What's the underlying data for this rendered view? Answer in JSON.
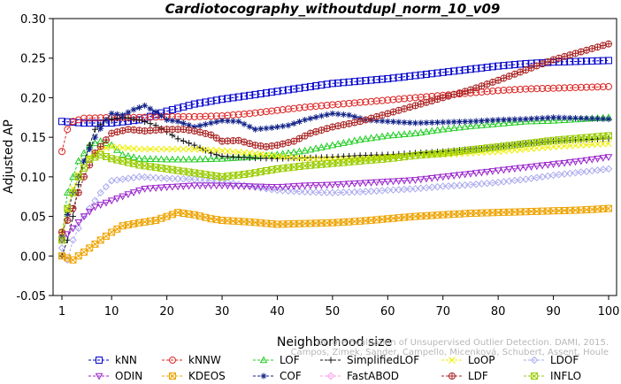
{
  "chart_data": {
    "type": "line",
    "title": "Cardiotocography_withoutdupl_norm_10_v09",
    "xlabel": "Neighborhood size",
    "ylabel": "Adjusted AP",
    "xlim": [
      1,
      100
    ],
    "ylim": [
      -0.05,
      0.3
    ],
    "xticks": [
      "1",
      "10",
      "20",
      "30",
      "40",
      "50",
      "60",
      "70",
      "80",
      "90",
      "100"
    ],
    "yticks": [
      "-0.05",
      "0.00",
      "0.05",
      "0.10",
      "0.15",
      "0.20",
      "0.25",
      "0.30"
    ],
    "credit": [
      "Campos, Zimek, Sander, Campello, Micenková, Schubert, Assent, Houle",
      "On the Evaluation of Unsupervised Outlier Detection. DAMI, 2015."
    ],
    "legend_position": "bottom",
    "series": [
      {
        "name": "kNN",
        "color": "#0000cc",
        "marker": "square",
        "points": [
          [
            1,
            0.17
          ],
          [
            5,
            0.168
          ],
          [
            10,
            0.168
          ],
          [
            15,
            0.172
          ],
          [
            20,
            0.183
          ],
          [
            25,
            0.192
          ],
          [
            30,
            0.198
          ],
          [
            35,
            0.203
          ],
          [
            40,
            0.208
          ],
          [
            45,
            0.213
          ],
          [
            50,
            0.218
          ],
          [
            55,
            0.221
          ],
          [
            60,
            0.224
          ],
          [
            65,
            0.228
          ],
          [
            70,
            0.232
          ],
          [
            75,
            0.236
          ],
          [
            80,
            0.24
          ],
          [
            85,
            0.243
          ],
          [
            90,
            0.245
          ],
          [
            95,
            0.246
          ],
          [
            100,
            0.247
          ]
        ]
      },
      {
        "name": "kNNW",
        "color": "#dd2222",
        "marker": "circle",
        "points": [
          [
            1,
            0.132
          ],
          [
            2,
            0.16
          ],
          [
            3,
            0.17
          ],
          [
            4,
            0.172
          ],
          [
            5,
            0.174
          ],
          [
            10,
            0.175
          ],
          [
            15,
            0.175
          ],
          [
            20,
            0.176
          ],
          [
            25,
            0.176
          ],
          [
            30,
            0.177
          ],
          [
            35,
            0.18
          ],
          [
            40,
            0.184
          ],
          [
            45,
            0.188
          ],
          [
            50,
            0.191
          ],
          [
            55,
            0.194
          ],
          [
            60,
            0.197
          ],
          [
            65,
            0.2
          ],
          [
            70,
            0.203
          ],
          [
            75,
            0.206
          ],
          [
            80,
            0.209
          ],
          [
            85,
            0.211
          ],
          [
            90,
            0.212
          ],
          [
            95,
            0.213
          ],
          [
            100,
            0.214
          ]
        ]
      },
      {
        "name": "LOF",
        "color": "#22cc22",
        "marker": "triangle-up",
        "points": [
          [
            1,
            0.022
          ],
          [
            2,
            0.08
          ],
          [
            3,
            0.1
          ],
          [
            4,
            0.12
          ],
          [
            5,
            0.13
          ],
          [
            6,
            0.14
          ],
          [
            8,
            0.145
          ],
          [
            10,
            0.14
          ],
          [
            12,
            0.128
          ],
          [
            15,
            0.123
          ],
          [
            20,
            0.122
          ],
          [
            25,
            0.122
          ],
          [
            30,
            0.123
          ],
          [
            35,
            0.125
          ],
          [
            40,
            0.128
          ],
          [
            45,
            0.133
          ],
          [
            50,
            0.14
          ],
          [
            55,
            0.147
          ],
          [
            60,
            0.152
          ],
          [
            65,
            0.155
          ],
          [
            70,
            0.16
          ],
          [
            75,
            0.164
          ],
          [
            80,
            0.167
          ],
          [
            85,
            0.17
          ],
          [
            90,
            0.171
          ],
          [
            95,
            0.173
          ],
          [
            100,
            0.175
          ]
        ]
      },
      {
        "name": "SimplifiedLOF",
        "color": "#111111",
        "marker": "plus",
        "points": [
          [
            1,
            0.0
          ],
          [
            2,
            0.02
          ],
          [
            3,
            0.05
          ],
          [
            4,
            0.09
          ],
          [
            5,
            0.12
          ],
          [
            7,
            0.16
          ],
          [
            9,
            0.172
          ],
          [
            12,
            0.175
          ],
          [
            15,
            0.172
          ],
          [
            18,
            0.165
          ],
          [
            20,
            0.157
          ],
          [
            22,
            0.148
          ],
          [
            25,
            0.14
          ],
          [
            28,
            0.13
          ],
          [
            30,
            0.126
          ],
          [
            35,
            0.124
          ],
          [
            40,
            0.123
          ],
          [
            45,
            0.124
          ],
          [
            50,
            0.125
          ],
          [
            55,
            0.127
          ],
          [
            60,
            0.128
          ],
          [
            65,
            0.13
          ],
          [
            70,
            0.132
          ],
          [
            75,
            0.135
          ],
          [
            80,
            0.138
          ],
          [
            85,
            0.142
          ],
          [
            90,
            0.145
          ],
          [
            95,
            0.147
          ],
          [
            100,
            0.148
          ]
        ]
      },
      {
        "name": "LoOP",
        "color": "#eeee00",
        "marker": "x",
        "points": [
          [
            1,
            0.03
          ],
          [
            3,
            0.085
          ],
          [
            5,
            0.12
          ],
          [
            8,
            0.135
          ],
          [
            10,
            0.138
          ],
          [
            15,
            0.135
          ],
          [
            20,
            0.135
          ],
          [
            25,
            0.135
          ],
          [
            30,
            0.133
          ],
          [
            35,
            0.13
          ],
          [
            40,
            0.126
          ],
          [
            45,
            0.123
          ],
          [
            50,
            0.122
          ],
          [
            55,
            0.123
          ],
          [
            60,
            0.125
          ],
          [
            65,
            0.127
          ],
          [
            70,
            0.128
          ],
          [
            75,
            0.13
          ],
          [
            80,
            0.132
          ],
          [
            85,
            0.135
          ],
          [
            90,
            0.138
          ],
          [
            95,
            0.14
          ],
          [
            100,
            0.142
          ]
        ]
      },
      {
        "name": "LDOF",
        "color": "#aaaaee",
        "marker": "diamond",
        "points": [
          [
            1,
            0.01
          ],
          [
            2,
            -0.005
          ],
          [
            3,
            0.02
          ],
          [
            5,
            0.05
          ],
          [
            8,
            0.08
          ],
          [
            10,
            0.095
          ],
          [
            15,
            0.1
          ],
          [
            20,
            0.098
          ],
          [
            25,
            0.097
          ],
          [
            30,
            0.094
          ],
          [
            35,
            0.088
          ],
          [
            40,
            0.083
          ],
          [
            45,
            0.081
          ],
          [
            50,
            0.08
          ],
          [
            55,
            0.081
          ],
          [
            60,
            0.083
          ],
          [
            65,
            0.085
          ],
          [
            70,
            0.088
          ],
          [
            75,
            0.09
          ],
          [
            80,
            0.093
          ],
          [
            85,
            0.097
          ],
          [
            90,
            0.102
          ],
          [
            95,
            0.106
          ],
          [
            100,
            0.11
          ]
        ]
      },
      {
        "name": "ODIN",
        "color": "#9922cc",
        "marker": "triangle-down",
        "points": [
          [
            1,
            0.02
          ],
          [
            3,
            0.035
          ],
          [
            5,
            0.05
          ],
          [
            7,
            0.062
          ],
          [
            10,
            0.07
          ],
          [
            13,
            0.078
          ],
          [
            16,
            0.085
          ],
          [
            20,
            0.087
          ],
          [
            25,
            0.089
          ],
          [
            30,
            0.089
          ],
          [
            35,
            0.088
          ],
          [
            40,
            0.087
          ],
          [
            45,
            0.089
          ],
          [
            50,
            0.09
          ],
          [
            55,
            0.092
          ],
          [
            60,
            0.094
          ],
          [
            65,
            0.096
          ],
          [
            70,
            0.1
          ],
          [
            75,
            0.104
          ],
          [
            80,
            0.108
          ],
          [
            85,
            0.112
          ],
          [
            90,
            0.116
          ],
          [
            95,
            0.12
          ],
          [
            100,
            0.125
          ]
        ]
      },
      {
        "name": "KDEOS",
        "color": "#eea300",
        "marker": "square-x",
        "points": [
          [
            1,
            0.0
          ],
          [
            3,
            -0.005
          ],
          [
            5,
            0.005
          ],
          [
            8,
            0.02
          ],
          [
            10,
            0.03
          ],
          [
            12,
            0.038
          ],
          [
            15,
            0.042
          ],
          [
            18,
            0.045
          ],
          [
            20,
            0.05
          ],
          [
            22,
            0.055
          ],
          [
            25,
            0.052
          ],
          [
            28,
            0.047
          ],
          [
            30,
            0.045
          ],
          [
            35,
            0.043
          ],
          [
            40,
            0.04
          ],
          [
            45,
            0.041
          ],
          [
            50,
            0.042
          ],
          [
            55,
            0.044
          ],
          [
            60,
            0.047
          ],
          [
            65,
            0.05
          ],
          [
            70,
            0.052
          ],
          [
            75,
            0.054
          ],
          [
            80,
            0.055
          ],
          [
            85,
            0.056
          ],
          [
            90,
            0.057
          ],
          [
            95,
            0.058
          ],
          [
            100,
            0.06
          ]
        ]
      },
      {
        "name": "COF",
        "color": "#112288",
        "marker": "asterisk",
        "points": [
          [
            1,
            0.025
          ],
          [
            3,
            0.08
          ],
          [
            5,
            0.12
          ],
          [
            7,
            0.15
          ],
          [
            9,
            0.172
          ],
          [
            10,
            0.18
          ],
          [
            12,
            0.178
          ],
          [
            14,
            0.185
          ],
          [
            16,
            0.19
          ],
          [
            18,
            0.182
          ],
          [
            20,
            0.172
          ],
          [
            22,
            0.17
          ],
          [
            25,
            0.163
          ],
          [
            28,
            0.168
          ],
          [
            30,
            0.171
          ],
          [
            33,
            0.17
          ],
          [
            36,
            0.16
          ],
          [
            39,
            0.162
          ],
          [
            42,
            0.165
          ],
          [
            45,
            0.172
          ],
          [
            48,
            0.177
          ],
          [
            50,
            0.18
          ],
          [
            53,
            0.178
          ],
          [
            56,
            0.172
          ],
          [
            60,
            0.17
          ],
          [
            65,
            0.168
          ],
          [
            70,
            0.169
          ],
          [
            75,
            0.17
          ],
          [
            80,
            0.172
          ],
          [
            85,
            0.173
          ],
          [
            90,
            0.175
          ],
          [
            95,
            0.174
          ],
          [
            100,
            0.173
          ]
        ]
      },
      {
        "name": "FastABOD",
        "color": "#ff99ee",
        "marker": "diamond",
        "points": []
      },
      {
        "name": "LDF",
        "color": "#aa2222",
        "marker": "circle-plus",
        "points": [
          [
            1,
            0.03
          ],
          [
            3,
            0.06
          ],
          [
            5,
            0.1
          ],
          [
            7,
            0.13
          ],
          [
            10,
            0.155
          ],
          [
            13,
            0.16
          ],
          [
            16,
            0.158
          ],
          [
            20,
            0.16
          ],
          [
            23,
            0.16
          ],
          [
            25,
            0.158
          ],
          [
            28,
            0.153
          ],
          [
            30,
            0.145
          ],
          [
            33,
            0.146
          ],
          [
            36,
            0.14
          ],
          [
            38,
            0.138
          ],
          [
            40,
            0.14
          ],
          [
            43,
            0.145
          ],
          [
            46,
            0.155
          ],
          [
            50,
            0.163
          ],
          [
            55,
            0.17
          ],
          [
            60,
            0.18
          ],
          [
            65,
            0.19
          ],
          [
            70,
            0.2
          ],
          [
            75,
            0.21
          ],
          [
            80,
            0.222
          ],
          [
            85,
            0.235
          ],
          [
            90,
            0.248
          ],
          [
            95,
            0.258
          ],
          [
            100,
            0.268
          ]
        ]
      },
      {
        "name": "INFLO",
        "color": "#99cc00",
        "marker": "square-x",
        "points": [
          [
            1,
            0.02
          ],
          [
            2,
            0.06
          ],
          [
            4,
            0.1
          ],
          [
            6,
            0.122
          ],
          [
            8,
            0.128
          ],
          [
            10,
            0.123
          ],
          [
            15,
            0.115
          ],
          [
            20,
            0.11
          ],
          [
            25,
            0.105
          ],
          [
            30,
            0.1
          ],
          [
            35,
            0.104
          ],
          [
            40,
            0.11
          ],
          [
            45,
            0.114
          ],
          [
            50,
            0.117
          ],
          [
            55,
            0.12
          ],
          [
            60,
            0.123
          ],
          [
            65,
            0.127
          ],
          [
            70,
            0.13
          ],
          [
            75,
            0.134
          ],
          [
            80,
            0.138
          ],
          [
            85,
            0.142
          ],
          [
            90,
            0.146
          ],
          [
            95,
            0.149
          ],
          [
            100,
            0.152
          ]
        ]
      }
    ]
  }
}
